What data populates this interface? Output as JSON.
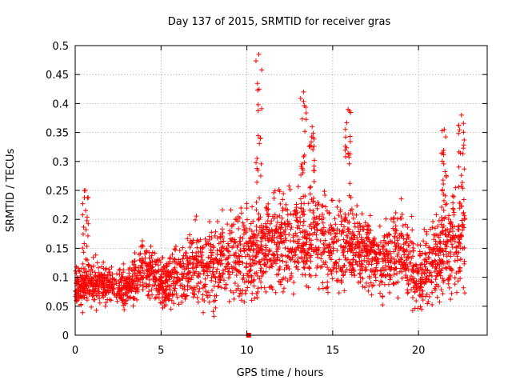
{
  "chart_data": {
    "type": "scatter",
    "title": "Day 137 of 2015, SRMTID for receiver gras",
    "xlabel": "GPS time / hours",
    "ylabel": "SRMTID / TECUs",
    "xlim": [
      0,
      24
    ],
    "ylim": [
      0,
      0.5
    ],
    "x_ticks": [
      0,
      5,
      10,
      15,
      20
    ],
    "x_tick_labels": [
      "0",
      "5",
      "10",
      "15",
      "20"
    ],
    "y_ticks": [
      0,
      0.05,
      0.1,
      0.15,
      0.2,
      0.25,
      0.3,
      0.35,
      0.4,
      0.45,
      0.5
    ],
    "y_tick_labels": [
      "0",
      "0.05",
      "0.1",
      "0.15",
      "0.2",
      "0.25",
      "0.3",
      "0.35",
      "0.4",
      "0.45",
      "0.5"
    ],
    "grid": true,
    "marker": "plus",
    "marker_color": "#ff0000",
    "series": [
      {
        "name": "SRMTID",
        "note": "approximate trend read from the plot (hour, typical value, upper spread)",
        "trend_x": [
          0,
          1,
          2,
          3,
          4,
          5,
          6,
          7,
          8,
          9,
          10,
          11,
          12,
          13,
          14,
          15,
          16,
          17,
          18,
          19,
          20,
          21,
          22,
          22.7
        ],
        "trend_y": [
          0.08,
          0.09,
          0.09,
          0.08,
          0.12,
          0.09,
          0.1,
          0.12,
          0.12,
          0.14,
          0.14,
          0.15,
          0.17,
          0.16,
          0.17,
          0.15,
          0.16,
          0.14,
          0.13,
          0.15,
          0.1,
          0.13,
          0.16,
          0.16
        ],
        "trend_spread": [
          0.02,
          0.025,
          0.02,
          0.02,
          0.025,
          0.025,
          0.03,
          0.04,
          0.04,
          0.045,
          0.045,
          0.045,
          0.05,
          0.05,
          0.045,
          0.045,
          0.045,
          0.04,
          0.04,
          0.045,
          0.035,
          0.045,
          0.05,
          0.05
        ],
        "spike_x": [
          0.6,
          10.7,
          13.3,
          13.8,
          15.9,
          21.5,
          22.5
        ],
        "spike_y": [
          0.25,
          0.485,
          0.42,
          0.36,
          0.39,
          0.355,
          0.38
        ],
        "squares_x": [
          10.1
        ],
        "squares_y": [
          0
        ]
      }
    ]
  }
}
